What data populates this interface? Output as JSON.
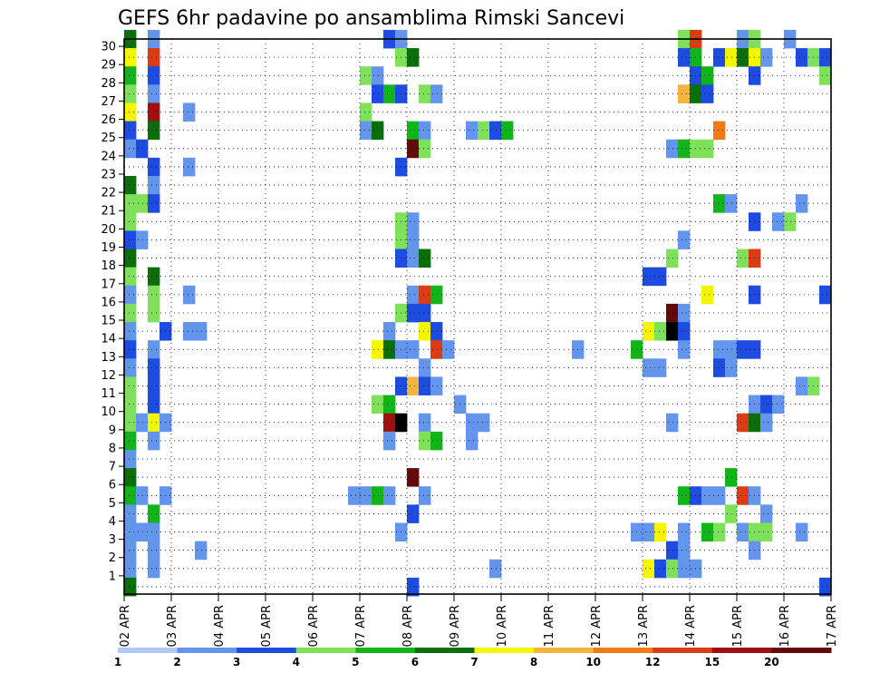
{
  "chart_data": {
    "type": "heatmap",
    "title": "GEFS 6hr padavine po ansamblima Rimski Sancevi",
    "xlabel": "",
    "ylabel": "",
    "x_ticks": [
      "02 APR",
      "03 APR",
      "04 APR",
      "05 APR",
      "06 APR",
      "07 APR",
      "08 APR",
      "09 APR",
      "10 APR",
      "11 APR",
      "12 APR",
      "13 APR",
      "14 APR",
      "15 APR",
      "16 APR",
      "17 APR"
    ],
    "y_ticks": [
      "1",
      "2",
      "3",
      "4",
      "5",
      "6",
      "7",
      "8",
      "9",
      "10",
      "11",
      "12",
      "13",
      "14",
      "15",
      "16",
      "17",
      "18",
      "19",
      "20",
      "21",
      "22",
      "23",
      "24",
      "25",
      "26",
      "27",
      "28",
      "29",
      "30"
    ],
    "x_range_steps": [
      0,
      60
    ],
    "y_range": [
      0,
      30
    ],
    "grid": true,
    "colorbar": {
      "labels": [
        "1",
        "2",
        "3",
        "4",
        "5",
        "6",
        "7",
        "8",
        "10",
        "12",
        "15",
        "20"
      ],
      "colors": [
        "#b4c8f5",
        "#6495ed",
        "#1e4ce0",
        "#7fe05a",
        "#11b51a",
        "#0a6e0a",
        "#f5f500",
        "#f5b43c",
        "#f07a14",
        "#dc3c14",
        "#a01010",
        "#640a0a"
      ]
    },
    "cells": [
      [
        30,
        0,
        5
      ],
      [
        30,
        2,
        1
      ],
      [
        30,
        22,
        2
      ],
      [
        30,
        23,
        1
      ],
      [
        30,
        47,
        3
      ],
      [
        30,
        48,
        9
      ],
      [
        30,
        52,
        1
      ],
      [
        30,
        53,
        3
      ],
      [
        30,
        56,
        1
      ],
      [
        29,
        0,
        6
      ],
      [
        29,
        2,
        9
      ],
      [
        29,
        23,
        3
      ],
      [
        29,
        24,
        5
      ],
      [
        29,
        47,
        2
      ],
      [
        29,
        48,
        4
      ],
      [
        29,
        50,
        2
      ],
      [
        29,
        51,
        6
      ],
      [
        29,
        52,
        5
      ],
      [
        29,
        53,
        6
      ],
      [
        29,
        54,
        1
      ],
      [
        29,
        57,
        2
      ],
      [
        29,
        58,
        3
      ],
      [
        29,
        59,
        2
      ],
      [
        28,
        0,
        4
      ],
      [
        28,
        2,
        2
      ],
      [
        28,
        20,
        3
      ],
      [
        28,
        21,
        1
      ],
      [
        28,
        48,
        2
      ],
      [
        28,
        49,
        4
      ],
      [
        28,
        53,
        2
      ],
      [
        28,
        59,
        3
      ],
      [
        27,
        0,
        3
      ],
      [
        27,
        2,
        1
      ],
      [
        27,
        21,
        2
      ],
      [
        27,
        22,
        4
      ],
      [
        27,
        23,
        2
      ],
      [
        27,
        25,
        3
      ],
      [
        27,
        26,
        1
      ],
      [
        27,
        47,
        7
      ],
      [
        27,
        48,
        5
      ],
      [
        27,
        49,
        2
      ],
      [
        26,
        0,
        6
      ],
      [
        26,
        2,
        10
      ],
      [
        26,
        5,
        1
      ],
      [
        26,
        20,
        3
      ],
      [
        25,
        0,
        2
      ],
      [
        25,
        2,
        5
      ],
      [
        25,
        20,
        1
      ],
      [
        25,
        21,
        5
      ],
      [
        25,
        24,
        4
      ],
      [
        25,
        25,
        1
      ],
      [
        25,
        29,
        1
      ],
      [
        25,
        30,
        3
      ],
      [
        25,
        31,
        2
      ],
      [
        25,
        32,
        4
      ],
      [
        25,
        50,
        8
      ],
      [
        24,
        0,
        1
      ],
      [
        24,
        1,
        2
      ],
      [
        24,
        24,
        11
      ],
      [
        24,
        25,
        3
      ],
      [
        24,
        46,
        1
      ],
      [
        24,
        47,
        4
      ],
      [
        24,
        48,
        3
      ],
      [
        24,
        49,
        3
      ],
      [
        23,
        2,
        2
      ],
      [
        23,
        5,
        1
      ],
      [
        23,
        23,
        2
      ],
      [
        22,
        0,
        5
      ],
      [
        22,
        2,
        1
      ],
      [
        21,
        0,
        3
      ],
      [
        21,
        1,
        3
      ],
      [
        21,
        2,
        2
      ],
      [
        21,
        50,
        4
      ],
      [
        21,
        51,
        1
      ],
      [
        21,
        57,
        1
      ],
      [
        20,
        0,
        3
      ],
      [
        20,
        23,
        3
      ],
      [
        20,
        24,
        1
      ],
      [
        20,
        53,
        2
      ],
      [
        20,
        55,
        1
      ],
      [
        20,
        56,
        3
      ],
      [
        19,
        0,
        2
      ],
      [
        19,
        1,
        1
      ],
      [
        19,
        23,
        3
      ],
      [
        19,
        24,
        1
      ],
      [
        19,
        47,
        1
      ],
      [
        18,
        0,
        5
      ],
      [
        18,
        23,
        2
      ],
      [
        18,
        24,
        1
      ],
      [
        18,
        25,
        5
      ],
      [
        18,
        46,
        3
      ],
      [
        18,
        52,
        3
      ],
      [
        18,
        53,
        9
      ],
      [
        17,
        0,
        3
      ],
      [
        17,
        2,
        5
      ],
      [
        17,
        44,
        2
      ],
      [
        17,
        45,
        2
      ],
      [
        16,
        0,
        1
      ],
      [
        16,
        2,
        3
      ],
      [
        16,
        5,
        1
      ],
      [
        16,
        24,
        1
      ],
      [
        16,
        25,
        9
      ],
      [
        16,
        26,
        4
      ],
      [
        16,
        49,
        6
      ],
      [
        16,
        53,
        2
      ],
      [
        16,
        59,
        2
      ],
      [
        15,
        0,
        3
      ],
      [
        15,
        2,
        3
      ],
      [
        15,
        23,
        3
      ],
      [
        15,
        24,
        2
      ],
      [
        15,
        25,
        2
      ],
      [
        15,
        46,
        11
      ],
      [
        15,
        47,
        1
      ],
      [
        14,
        0,
        1
      ],
      [
        14,
        3,
        2
      ],
      [
        14,
        5,
        1
      ],
      [
        14,
        6,
        1
      ],
      [
        14,
        22,
        1
      ],
      [
        14,
        25,
        6
      ],
      [
        14,
        26,
        2
      ],
      [
        14,
        44,
        6
      ],
      [
        14,
        45,
        3
      ],
      [
        14,
        46,
        12
      ],
      [
        14,
        47,
        2
      ],
      [
        13,
        0,
        2
      ],
      [
        13,
        2,
        1
      ],
      [
        13,
        21,
        6
      ],
      [
        13,
        22,
        5
      ],
      [
        13,
        23,
        1
      ],
      [
        13,
        24,
        1
      ],
      [
        13,
        26,
        9
      ],
      [
        13,
        27,
        1
      ],
      [
        13,
        38,
        1
      ],
      [
        13,
        43,
        4
      ],
      [
        13,
        47,
        1
      ],
      [
        13,
        50,
        1
      ],
      [
        13,
        51,
        1
      ],
      [
        13,
        52,
        2
      ],
      [
        13,
        53,
        2
      ],
      [
        12,
        0,
        1
      ],
      [
        12,
        2,
        2
      ],
      [
        12,
        25,
        1
      ],
      [
        12,
        44,
        1
      ],
      [
        12,
        45,
        1
      ],
      [
        12,
        50,
        2
      ],
      [
        12,
        51,
        1
      ],
      [
        11,
        0,
        3
      ],
      [
        11,
        2,
        2
      ],
      [
        11,
        23,
        2
      ],
      [
        11,
        24,
        7
      ],
      [
        11,
        25,
        2
      ],
      [
        11,
        26,
        1
      ],
      [
        11,
        57,
        1
      ],
      [
        11,
        58,
        3
      ],
      [
        10,
        0,
        3
      ],
      [
        10,
        2,
        2
      ],
      [
        10,
        21,
        3
      ],
      [
        10,
        22,
        4
      ],
      [
        10,
        28,
        1
      ],
      [
        10,
        53,
        1
      ],
      [
        10,
        54,
        2
      ],
      [
        10,
        55,
        1
      ],
      [
        9,
        0,
        3
      ],
      [
        9,
        1,
        1
      ],
      [
        9,
        2,
        6
      ],
      [
        9,
        3,
        1
      ],
      [
        9,
        22,
        10
      ],
      [
        9,
        23,
        12
      ],
      [
        9,
        25,
        1
      ],
      [
        9,
        29,
        1
      ],
      [
        9,
        30,
        1
      ],
      [
        9,
        46,
        1
      ],
      [
        9,
        52,
        9
      ],
      [
        9,
        53,
        5
      ],
      [
        9,
        54,
        1
      ],
      [
        8,
        0,
        4
      ],
      [
        8,
        2,
        1
      ],
      [
        8,
        22,
        1
      ],
      [
        8,
        25,
        3
      ],
      [
        8,
        26,
        4
      ],
      [
        8,
        29,
        1
      ],
      [
        7,
        0,
        1
      ],
      [
        6,
        0,
        5
      ],
      [
        6,
        24,
        11
      ],
      [
        6,
        51,
        4
      ],
      [
        5,
        0,
        4
      ],
      [
        5,
        1,
        1
      ],
      [
        5,
        3,
        1
      ],
      [
        5,
        19,
        1
      ],
      [
        5,
        20,
        1
      ],
      [
        5,
        21,
        4
      ],
      [
        5,
        22,
        1
      ],
      [
        5,
        25,
        1
      ],
      [
        5,
        47,
        4
      ],
      [
        5,
        48,
        2
      ],
      [
        5,
        49,
        1
      ],
      [
        5,
        50,
        1
      ],
      [
        5,
        52,
        9
      ],
      [
        5,
        53,
        1
      ],
      [
        4,
        0,
        1
      ],
      [
        4,
        2,
        4
      ],
      [
        4,
        24,
        2
      ],
      [
        4,
        51,
        3
      ],
      [
        4,
        54,
        1
      ],
      [
        3,
        0,
        1
      ],
      [
        3,
        1,
        1
      ],
      [
        3,
        2,
        1
      ],
      [
        3,
        23,
        1
      ],
      [
        3,
        43,
        1
      ],
      [
        3,
        44,
        1
      ],
      [
        3,
        45,
        6
      ],
      [
        3,
        47,
        1
      ],
      [
        3,
        49,
        4
      ],
      [
        3,
        50,
        3
      ],
      [
        3,
        52,
        1
      ],
      [
        3,
        53,
        3
      ],
      [
        3,
        54,
        3
      ],
      [
        3,
        57,
        1
      ],
      [
        2,
        0,
        1
      ],
      [
        2,
        2,
        1
      ],
      [
        2,
        6,
        1
      ],
      [
        2,
        46,
        2
      ],
      [
        2,
        47,
        1
      ],
      [
        2,
        53,
        1
      ],
      [
        1,
        0,
        1
      ],
      [
        1,
        2,
        1
      ],
      [
        1,
        31,
        1
      ],
      [
        1,
        44,
        6
      ],
      [
        1,
        45,
        2
      ],
      [
        1,
        46,
        3
      ],
      [
        1,
        47,
        1
      ],
      [
        1,
        48,
        1
      ],
      [
        0,
        0,
        5
      ],
      [
        0,
        24,
        2
      ],
      [
        0,
        59,
        2
      ]
    ]
  }
}
